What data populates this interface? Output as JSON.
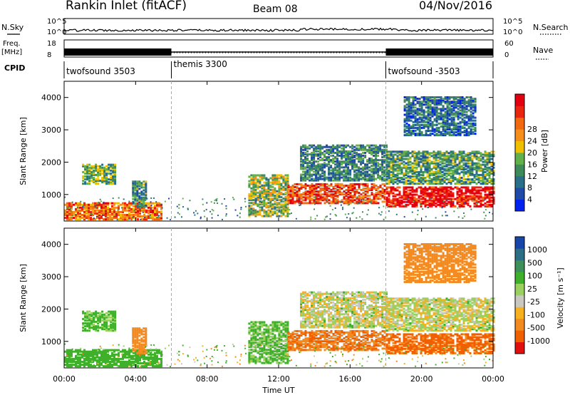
{
  "header": {
    "station": "Rankin Inlet (fitACF)",
    "beam": "Beam 08",
    "date": "04/Nov/2016"
  },
  "strip_panels": {
    "nsky": {
      "label": "N.Sky",
      "ticks": [
        "10^5",
        "10^0"
      ]
    },
    "nsearch": {
      "label": "N.Search",
      "ticks": [
        "10^5",
        "10^0"
      ]
    },
    "freq": {
      "label_line1": "Freq.",
      "label_line2": "[MHz]",
      "ticks": [
        "18",
        "8"
      ]
    },
    "nave": {
      "label": "Nave",
      "ticks": [
        "60",
        "0"
      ]
    },
    "cpid": {
      "label": "CPID",
      "segments": [
        {
          "name": "twofsound 3503",
          "start_h": 0,
          "end_h": 6
        },
        {
          "name": "themis 3300",
          "start_h": 6,
          "end_h": 18
        },
        {
          "name": "twofsound -3503",
          "start_h": 18,
          "end_h": 24
        }
      ]
    }
  },
  "x_axis": {
    "title": "Time UT",
    "ticks": [
      "00:00",
      "04:00",
      "08:00",
      "12:00",
      "16:00",
      "20:00",
      "00:00"
    ]
  },
  "power_panel": {
    "ylabel": "Slant Range [km]",
    "yticks": [
      "1000",
      "2000",
      "3000",
      "4000"
    ],
    "colorbar_label": "Power [dB]",
    "colorbar_ticks": [
      "4",
      "8",
      "12",
      "16",
      "20",
      "24",
      "28"
    ]
  },
  "velocity_panel": {
    "ylabel": "Slant Range [km]",
    "yticks": [
      "1000",
      "2000",
      "3000",
      "4000"
    ],
    "colorbar_label": "Velocity [m s⁻¹]",
    "colorbar_ticks": [
      "-1000",
      "-500",
      "-100",
      "-25",
      "25",
      "100",
      "500",
      "1000"
    ]
  },
  "colors": {
    "power_scale": [
      "#0022ee",
      "#1f4aa6",
      "#2a6f8a",
      "#3f8a5a",
      "#62b04a",
      "#f0c000",
      "#f58e1a",
      "#f26a10",
      "#e92510",
      "#e20010"
    ],
    "velocity_scale": [
      "#e01010",
      "#f06000",
      "#f28a20",
      "#f6b020",
      "#c8c8c0",
      "#9ad060",
      "#3fb02a",
      "#3e8f5a",
      "#2a6f86",
      "#1846a8"
    ],
    "dash_line": "#aaaaaa"
  },
  "chart_data": {
    "type": "heatmap",
    "x_range_hours": [
      0,
      24
    ],
    "y_range_km": [
      180,
      4500
    ],
    "regions": [
      {
        "t_start_h": 0.0,
        "t_end_h": 5.5,
        "range_min_km": 200,
        "range_max_km": 700,
        "power_db": 22,
        "velocity_ms": 120
      },
      {
        "t_start_h": 1.0,
        "t_end_h": 2.8,
        "range_min_km": 1300,
        "range_max_km": 1900,
        "power_db": 12,
        "velocity_ms": 90
      },
      {
        "t_start_h": 3.8,
        "t_end_h": 4.6,
        "range_min_km": 600,
        "range_max_km": 1400,
        "power_db": 10,
        "velocity_ms": -150
      },
      {
        "t_start_h": 10.3,
        "t_end_h": 12.5,
        "range_min_km": 300,
        "range_max_km": 1600,
        "power_db": 14,
        "velocity_ms": 80
      },
      {
        "t_start_h": 12.5,
        "t_end_h": 18.0,
        "range_min_km": 700,
        "range_max_km": 1300,
        "power_db": 24,
        "velocity_ms": -300
      },
      {
        "t_start_h": 13.2,
        "t_end_h": 18.0,
        "range_min_km": 1400,
        "range_max_km": 2500,
        "power_db": 9,
        "velocity_ms": 10
      },
      {
        "t_start_h": 18.0,
        "t_end_h": 24.0,
        "range_min_km": 600,
        "range_max_km": 1200,
        "power_db": 28,
        "velocity_ms": -450
      },
      {
        "t_start_h": 18.0,
        "t_end_h": 24.0,
        "range_min_km": 1300,
        "range_max_km": 2300,
        "power_db": 11,
        "velocity_ms": 5
      },
      {
        "t_start_h": 19.0,
        "t_end_h": 23.0,
        "range_min_km": 2800,
        "range_max_km": 4000,
        "power_db": 7,
        "velocity_ms": -200
      }
    ]
  }
}
